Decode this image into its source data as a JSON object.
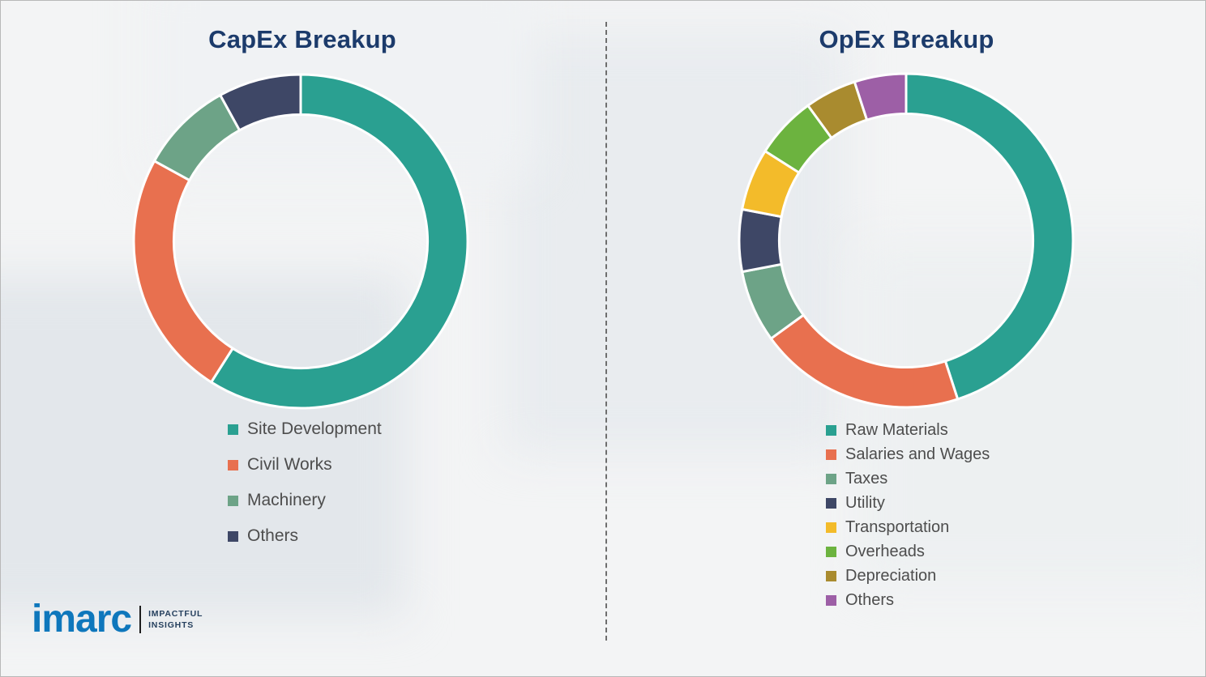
{
  "branding": {
    "logo_text": "imarc",
    "tagline_line1": "IMPACTFUL",
    "tagline_line2": "INSIGHTS",
    "logo_color": "#0e77bc",
    "tagline_color": "#26405e"
  },
  "titles_color": "#1c3b6b",
  "chart_data": [
    {
      "type": "pie",
      "title": "CapEx Breakup",
      "donut": true,
      "donut_hole": 0.76,
      "start_angle_deg": 0,
      "direction": "clockwise",
      "legend_position": "bottom-left",
      "categories": [
        "Site Development",
        "Civil Works",
        "Machinery",
        "Others"
      ],
      "values": [
        59,
        24,
        9,
        8
      ],
      "colors": [
        "#2aa091",
        "#e8704f",
        "#6da387",
        "#3e4766"
      ]
    },
    {
      "type": "pie",
      "title": "OpEx Breakup",
      "donut": true,
      "donut_hole": 0.76,
      "start_angle_deg": 0,
      "direction": "clockwise",
      "legend_position": "bottom-left",
      "categories": [
        "Raw Materials",
        "Salaries and Wages",
        "Taxes",
        "Utility",
        "Transportation",
        "Overheads",
        "Depreciation",
        "Others"
      ],
      "values": [
        45,
        20,
        7,
        6,
        6,
        6,
        5,
        5
      ],
      "colors": [
        "#2aa091",
        "#e8704f",
        "#6da387",
        "#3e4766",
        "#f3bb2a",
        "#6cb33f",
        "#a98b2f",
        "#9d5fa6"
      ]
    }
  ]
}
